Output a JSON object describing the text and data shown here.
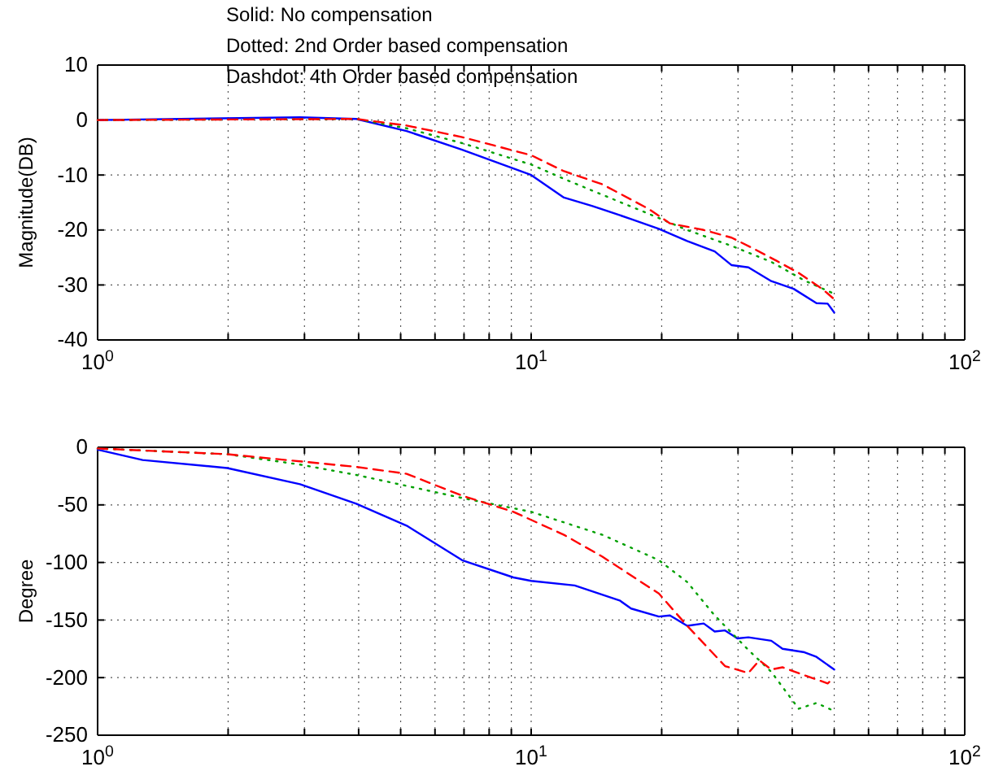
{
  "chart_data": [
    {
      "type": "line",
      "ylabel": "Magnitude(DB)",
      "annotations": [
        "Solid: No compensation",
        "Dotted: 2nd Order based compensation",
        "Dashdot: 4th Order based compensation"
      ],
      "log": "x",
      "grid": true,
      "xlim": [
        1,
        100
      ],
      "ylim": [
        -40,
        10
      ],
      "xticks": [
        {
          "value": 1,
          "label": "10$^{0}$"
        },
        {
          "value": 2,
          "label": null
        },
        {
          "value": 3,
          "label": null
        },
        {
          "value": 4,
          "label": null
        },
        {
          "value": 5,
          "label": null
        },
        {
          "value": 6,
          "label": null
        },
        {
          "value": 7,
          "label": null
        },
        {
          "value": 8,
          "label": null
        },
        {
          "value": 9,
          "label": null
        },
        {
          "value": 10,
          "label": "10$^{1}$"
        },
        {
          "value": 20,
          "label": null
        },
        {
          "value": 30,
          "label": null
        },
        {
          "value": 40,
          "label": null
        },
        {
          "value": 50,
          "label": null
        },
        {
          "value": 60,
          "label": null
        },
        {
          "value": 70,
          "label": null
        },
        {
          "value": 80,
          "label": null
        },
        {
          "value": 90,
          "label": null
        },
        {
          "value": 100,
          "label": "10$^{2}$"
        }
      ],
      "yticks": [
        -40,
        -30,
        -20,
        -10,
        0,
        10
      ],
      "series": [
        {
          "color": "#0000ff",
          "line_style": "solid",
          "x": [
            1,
            2.93,
            3.95,
            5.16,
            6.93,
            10,
            11.9,
            13.8,
            17,
            19.7,
            22.9,
            26.5,
            29,
            31.7,
            35.8,
            40.3,
            45.5,
            48.3,
            50
          ],
          "values": [
            0,
            0.5,
            0.2,
            -2,
            -5.4,
            -10,
            -14.1,
            -15.6,
            -18,
            -19.8,
            -22,
            -23.9,
            -26.4,
            -26.8,
            -29.3,
            -30.7,
            -33.3,
            -33.4,
            -35
          ]
        },
        {
          "color": "#00a000",
          "line_style": "dotted",
          "x": [
            1,
            3.95,
            5.16,
            6.93,
            10,
            11.9,
            14.6,
            18.6,
            22.9,
            29,
            35.8,
            42.7,
            50
          ],
          "values": [
            0,
            0.2,
            -1.5,
            -4.2,
            -8.1,
            -10.7,
            -13.6,
            -17,
            -20,
            -22.9,
            -25.8,
            -29.2,
            -31.6
          ]
        },
        {
          "color": "#ff0000",
          "line_style": "dashed",
          "x": [
            1,
            3.95,
            5.16,
            6.93,
            10,
            11.9,
            14.6,
            18.6,
            20.9,
            25,
            29,
            32.6,
            36.8,
            41.4,
            46.9,
            50
          ],
          "values": [
            0,
            0.2,
            -1,
            -3.1,
            -6.4,
            -9.3,
            -11.7,
            -16.1,
            -18.8,
            -20,
            -21.4,
            -23.4,
            -25.6,
            -27.8,
            -30.7,
            -32.6
          ]
        }
      ]
    },
    {
      "type": "line",
      "ylabel": "Degree",
      "log": "x",
      "grid": true,
      "xlim": [
        1,
        100
      ],
      "ylim": [
        -250,
        0
      ],
      "xticks": [
        {
          "value": 1,
          "label": "10$^{0}$"
        },
        {
          "value": 2,
          "label": null
        },
        {
          "value": 3,
          "label": null
        },
        {
          "value": 4,
          "label": null
        },
        {
          "value": 5,
          "label": null
        },
        {
          "value": 6,
          "label": null
        },
        {
          "value": 7,
          "label": null
        },
        {
          "value": 8,
          "label": null
        },
        {
          "value": 9,
          "label": null
        },
        {
          "value": 10,
          "label": "10$^{1}$"
        },
        {
          "value": 20,
          "label": null
        },
        {
          "value": 30,
          "label": null
        },
        {
          "value": 40,
          "label": null
        },
        {
          "value": 50,
          "label": null
        },
        {
          "value": 60,
          "label": null
        },
        {
          "value": 70,
          "label": null
        },
        {
          "value": 80,
          "label": null
        },
        {
          "value": 90,
          "label": null
        },
        {
          "value": 100,
          "label": "10$^{2}$"
        }
      ],
      "yticks": [
        -250,
        -200,
        -150,
        -100,
        -50,
        0
      ],
      "series": [
        {
          "color": "#0000ff",
          "line_style": "solid",
          "x": [
            1,
            1.27,
            1.99,
            2.93,
            3.95,
            5.16,
            6.93,
            9.1,
            10,
            12.6,
            16,
            17,
            19.7,
            20.9,
            22.9,
            25,
            26.5,
            28,
            29.9,
            31.7,
            35.8,
            38,
            42.7,
            45.5,
            50
          ],
          "values": [
            -2,
            -11,
            -18,
            -32,
            -49,
            -68,
            -98,
            -113,
            -116,
            -120,
            -133,
            -140,
            -147,
            -146,
            -155,
            -153,
            -160,
            -159,
            -166,
            -165,
            -168,
            -175,
            -178,
            -182,
            -193
          ]
        },
        {
          "color": "#00a000",
          "line_style": "dotted",
          "x": [
            1,
            1.99,
            2.93,
            3.95,
            6.93,
            10,
            14.6,
            19.7,
            22.9,
            26.5,
            31.7,
            35.8,
            41.4,
            45.5,
            50
          ],
          "values": [
            -1,
            -6,
            -15,
            -24,
            -44,
            -56,
            -76,
            -98,
            -117,
            -146,
            -176,
            -195,
            -227,
            -222,
            -229
          ]
        },
        {
          "color": "#ff0000",
          "line_style": "dashed",
          "x": [
            1,
            1.99,
            3.95,
            5.16,
            6.93,
            9.1,
            11.9,
            14.6,
            19.7,
            22.9,
            28,
            31.7,
            33.6,
            35.8,
            38,
            42.7,
            48.3,
            50
          ],
          "values": [
            -1,
            -6,
            -17,
            -23,
            -42,
            -56,
            -76,
            -95,
            -127,
            -155,
            -190,
            -196,
            -185,
            -193,
            -191,
            -198,
            -205,
            -200
          ]
        }
      ]
    }
  ]
}
